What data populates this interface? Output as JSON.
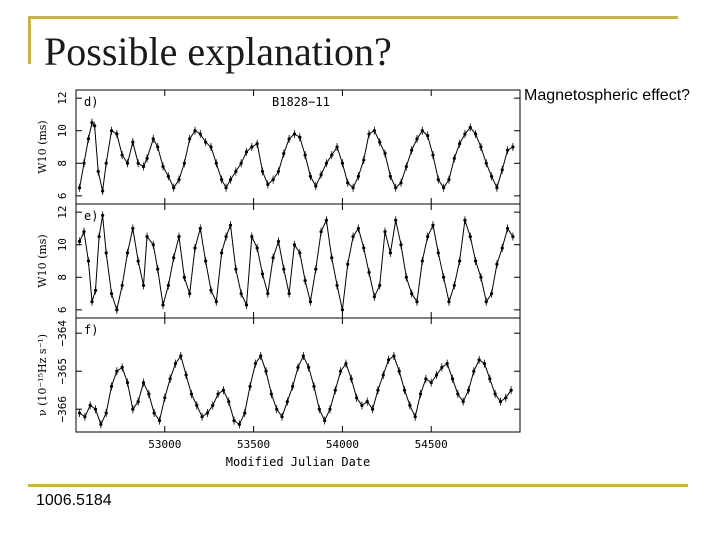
{
  "slide": {
    "title": "Possible explanation?",
    "side_note": "Magnetospheric effect?",
    "reference": "1006.5184",
    "accent_color": "#c8b44a"
  },
  "chart_data": [
    {
      "type": "line",
      "panel_label": "d)",
      "annotation": "B1828−11",
      "ylabel": "W10 (ms)",
      "ylim": [
        5.5,
        12.5
      ],
      "yticks": [
        "6",
        "8",
        "10",
        "12"
      ],
      "xlim": [
        52500,
        55000
      ],
      "series": [
        {
          "x": [
            52520,
            52545,
            52570,
            52590,
            52605,
            52625,
            52650,
            52670,
            52700,
            52730,
            52760,
            52790,
            52820,
            52850,
            52880,
            52900,
            52935,
            52960,
            52990,
            53020,
            53050,
            53080,
            53110,
            53140,
            53170,
            53200,
            53230,
            53260,
            53290,
            53320,
            53345,
            53370,
            53400,
            53430,
            53460,
            53490,
            53520,
            53550,
            53580,
            53610,
            53640,
            53670,
            53700,
            53730,
            53760,
            53790,
            53820,
            53850,
            53880,
            53910,
            53940,
            53970,
            54000,
            54030,
            54060,
            54090,
            54120,
            54150,
            54180,
            54210,
            54240,
            54270,
            54300,
            54330,
            54360,
            54390,
            54420,
            54450,
            54480,
            54510,
            54540,
            54570,
            54600,
            54630,
            54660,
            54690,
            54720,
            54750,
            54780,
            54810,
            54840,
            54870,
            54900,
            54930,
            54960
          ],
          "y": [
            6.5,
            8.0,
            9.5,
            10.5,
            10.3,
            7.5,
            6.3,
            8.0,
            10.0,
            9.8,
            8.5,
            8.0,
            9.3,
            8.0,
            7.8,
            8.3,
            9.5,
            9.0,
            7.8,
            7.2,
            6.5,
            7.0,
            8.0,
            9.5,
            10.0,
            9.8,
            9.3,
            9.0,
            8.0,
            7.0,
            6.5,
            7.0,
            7.5,
            8.0,
            8.7,
            9.0,
            9.2,
            7.5,
            6.7,
            7.0,
            7.5,
            8.6,
            9.5,
            9.8,
            9.6,
            8.5,
            7.2,
            6.6,
            7.3,
            8.0,
            8.5,
            9.0,
            8.0,
            6.8,
            6.5,
            7.2,
            8.2,
            9.8,
            10.0,
            9.3,
            8.6,
            7.2,
            6.5,
            6.8,
            7.8,
            8.8,
            9.5,
            10.0,
            9.7,
            8.5,
            7.0,
            6.5,
            7.0,
            8.3,
            9.2,
            9.8,
            10.2,
            9.8,
            9.0,
            8.0,
            7.2,
            6.5,
            7.6,
            8.8,
            9.0
          ]
        }
      ]
    },
    {
      "type": "line",
      "panel_label": "e)",
      "annotation": "",
      "ylabel": "W10 (ms)",
      "ylim": [
        5.5,
        12.5
      ],
      "yticks": [
        "6",
        "8",
        "10",
        "12"
      ],
      "xlim": [
        52500,
        55000
      ],
      "series": [
        {
          "x": [
            52520,
            52545,
            52570,
            52590,
            52610,
            52630,
            52650,
            52670,
            52700,
            52730,
            52760,
            52790,
            52820,
            52850,
            52880,
            52900,
            52935,
            52960,
            52990,
            53020,
            53050,
            53080,
            53110,
            53140,
            53170,
            53200,
            53230,
            53260,
            53290,
            53320,
            53345,
            53370,
            53400,
            53430,
            53460,
            53490,
            53520,
            53550,
            53580,
            53610,
            53640,
            53670,
            53700,
            53730,
            53760,
            53790,
            53820,
            53850,
            53880,
            53910,
            53940,
            53970,
            54000,
            54030,
            54060,
            54090,
            54120,
            54150,
            54180,
            54210,
            54240,
            54270,
            54300,
            54330,
            54360,
            54390,
            54420,
            54450,
            54480,
            54510,
            54540,
            54570,
            54600,
            54630,
            54660,
            54690,
            54720,
            54750,
            54780,
            54810,
            54840,
            54870,
            54900,
            54930,
            54960
          ],
          "y": [
            10.2,
            10.8,
            9.0,
            6.5,
            7.2,
            10.5,
            11.8,
            9.5,
            7.0,
            6.0,
            7.5,
            9.5,
            11.0,
            9.0,
            7.5,
            10.5,
            10.0,
            8.5,
            6.3,
            7.5,
            9.2,
            10.5,
            8.0,
            7.0,
            9.8,
            11.0,
            9.0,
            7.2,
            6.5,
            9.5,
            10.5,
            11.2,
            8.5,
            7.0,
            6.3,
            10.5,
            9.8,
            8.2,
            7.0,
            9.2,
            10.2,
            8.5,
            7.0,
            10.0,
            9.5,
            7.8,
            6.5,
            8.5,
            10.8,
            11.5,
            9.2,
            7.5,
            6.0,
            8.8,
            10.5,
            11.0,
            9.8,
            8.3,
            6.8,
            7.5,
            10.8,
            9.5,
            11.5,
            10.0,
            8.0,
            7.0,
            6.5,
            9.0,
            10.5,
            11.2,
            9.5,
            8.0,
            6.5,
            7.5,
            9.0,
            11.5,
            10.5,
            9.0,
            8.0,
            6.5,
            7.0,
            8.8,
            9.8,
            11.0,
            10.5
          ]
        }
      ]
    },
    {
      "type": "line",
      "panel_label": "f)",
      "annotation": "",
      "ylabel": "ν (10⁻¹⁵Hz s⁻¹)",
      "ylim": [
        -366.6,
        -363.6
      ],
      "yticks": [
        "−366",
        "−365",
        "−364"
      ],
      "xlim": [
        52500,
        55000
      ],
      "series": [
        {
          "x": [
            52520,
            52550,
            52580,
            52610,
            52640,
            52670,
            52700,
            52730,
            52760,
            52790,
            52820,
            52850,
            52880,
            52910,
            52940,
            52970,
            53000,
            53030,
            53060,
            53090,
            53120,
            53150,
            53180,
            53210,
            53240,
            53270,
            53300,
            53330,
            53360,
            53390,
            53420,
            53450,
            53480,
            53510,
            53540,
            53570,
            53600,
            53630,
            53660,
            53690,
            53720,
            53750,
            53780,
            53810,
            53840,
            53870,
            53900,
            53930,
            53960,
            53990,
            54020,
            54050,
            54080,
            54110,
            54140,
            54170,
            54200,
            54230,
            54260,
            54290,
            54320,
            54350,
            54380,
            54410,
            54440,
            54470,
            54500,
            54530,
            54560,
            54590,
            54620,
            54650,
            54680,
            54710,
            54740,
            54770,
            54800,
            54830,
            54860,
            54890,
            54920,
            54950
          ],
          "y": [
            -366.1,
            -366.2,
            -365.9,
            -366.0,
            -366.4,
            -366.1,
            -365.4,
            -365.0,
            -364.9,
            -365.3,
            -366.0,
            -365.8,
            -365.3,
            -365.6,
            -366.1,
            -366.3,
            -365.7,
            -365.2,
            -364.8,
            -364.6,
            -365.1,
            -365.6,
            -365.9,
            -366.2,
            -366.1,
            -365.9,
            -365.6,
            -365.5,
            -365.8,
            -366.3,
            -366.4,
            -366.1,
            -365.4,
            -364.8,
            -364.6,
            -365.0,
            -365.6,
            -366.0,
            -366.2,
            -365.8,
            -365.4,
            -364.9,
            -364.6,
            -364.9,
            -365.4,
            -366.0,
            -366.3,
            -366.0,
            -365.5,
            -365.0,
            -364.8,
            -365.2,
            -365.7,
            -365.9,
            -365.8,
            -366.0,
            -365.5,
            -365.1,
            -364.7,
            -364.6,
            -365.0,
            -365.5,
            -365.9,
            -366.2,
            -365.6,
            -365.2,
            -365.3,
            -365.1,
            -364.9,
            -364.8,
            -365.2,
            -365.6,
            -365.8,
            -365.5,
            -365.0,
            -364.7,
            -364.8,
            -365.2,
            -365.6,
            -365.8,
            -365.7,
            -365.5
          ]
        }
      ]
    }
  ],
  "shared_x_axis": {
    "xlabel": "Modified Julian Date",
    "ticks": [
      53000,
      53500,
      54000,
      54500
    ],
    "tick_labels": [
      "53000",
      "53500",
      "54000",
      "54500"
    ]
  }
}
